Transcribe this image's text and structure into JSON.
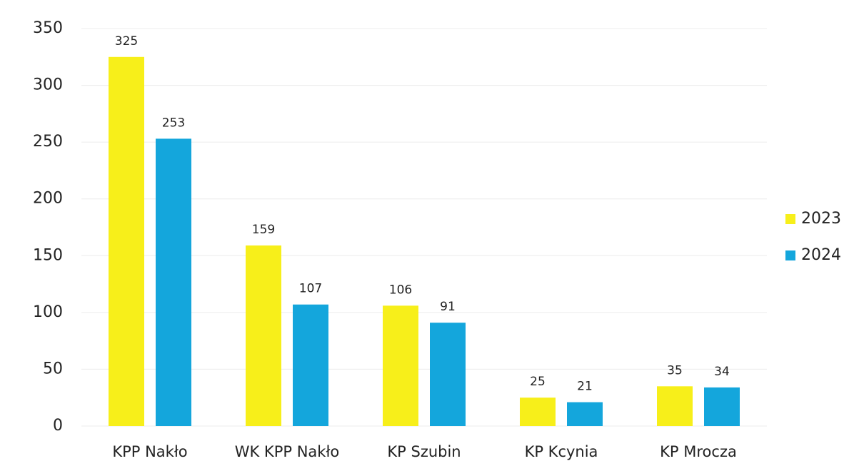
{
  "chart_data": {
    "type": "bar",
    "categories": [
      "KPP Nakło",
      "WK KPP Nakło",
      "KP Szubin",
      "KP Kcynia",
      "KP Mrocza"
    ],
    "series": [
      {
        "name": "2023",
        "color": "#f7ef1a",
        "values": [
          325,
          159,
          106,
          25,
          35
        ]
      },
      {
        "name": "2024",
        "color": "#14a6dc",
        "values": [
          253,
          107,
          91,
          21,
          34
        ]
      }
    ],
    "ylim": [
      0,
      350
    ],
    "yticks": [
      0,
      50,
      100,
      150,
      200,
      250,
      300,
      350
    ],
    "grid": true,
    "legend": "right"
  }
}
